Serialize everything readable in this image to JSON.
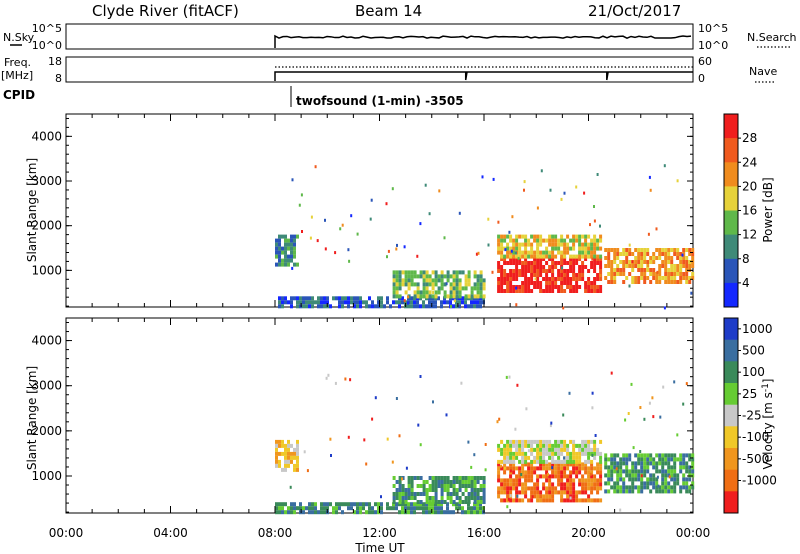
{
  "header": {
    "station": "Clyde River (fitACF)",
    "beam": "Beam 14",
    "date": "21/Oct/2017"
  },
  "panels": {
    "nsky": {
      "left_label": "N.Sky",
      "right_label": "N.Search",
      "tick_top_left": "10^5",
      "tick_bottom_left": "10^0",
      "tick_top_right": "10^5",
      "tick_bottom_right": "10^0"
    },
    "freq": {
      "left_label_1": "Freq.",
      "left_label_2": "[MHz]",
      "right_label": "Nave",
      "tick_top_left": "18",
      "tick_bottom_left": "8",
      "tick_top_right": "60",
      "tick_bottom_right": "0"
    },
    "cpid": {
      "label": "CPID",
      "program": "twofsound (1-min) -3505"
    }
  },
  "chart_data": [
    {
      "type": "heatmap",
      "name": "Power",
      "ylabel": "Slant Range [km]",
      "xlabel": "",
      "x_unit": "hours UT",
      "xlim": [
        0,
        24
      ],
      "ylim": [
        180,
        4500
      ],
      "yticks": [
        1000,
        2000,
        3000,
        4000
      ],
      "colorbar": {
        "label": "Power [dB]",
        "ticks": [
          "4",
          "8",
          "12",
          "16",
          "20",
          "24",
          "28"
        ],
        "colors": [
          "#1428ff",
          "#2a55b8",
          "#3f8a78",
          "#5fb84a",
          "#e6d23a",
          "#f08c1e",
          "#f05a1e",
          "#f01e1e"
        ]
      },
      "regions": [
        {
          "t0": 8.0,
          "t1": 8.9,
          "r0": 1150,
          "r1": 1800,
          "level": 2
        },
        {
          "t0": 8.0,
          "t1": 16.0,
          "r0": 180,
          "r1": 420,
          "level": 1
        },
        {
          "t0": 12.5,
          "t1": 16.0,
          "r0": 420,
          "r1": 1000,
          "level": 3
        },
        {
          "t0": 16.5,
          "t1": 20.5,
          "r0": 500,
          "r1": 1300,
          "level": 7
        },
        {
          "t0": 16.5,
          "t1": 20.5,
          "r0": 1300,
          "r1": 1800,
          "level": 4
        },
        {
          "t0": 20.6,
          "t1": 24.0,
          "r0": 700,
          "r1": 1500,
          "level": 5
        }
      ]
    },
    {
      "type": "heatmap",
      "name": "Velocity",
      "ylabel": "Slant Range [km]",
      "xlabel": "Time UT",
      "x_unit": "hours UT",
      "xlim": [
        0,
        24
      ],
      "ylim": [
        180,
        4500
      ],
      "yticks": [
        1000,
        2000,
        3000,
        4000
      ],
      "xticks": [
        "00:00",
        "04:00",
        "08:00",
        "12:00",
        "16:00",
        "20:00",
        "00:00"
      ],
      "colorbar": {
        "label": "Velocity [m s^-1]",
        "ticks": [
          "1000",
          "500",
          "100",
          "25",
          "-25",
          "-100",
          "-500",
          "-1000"
        ],
        "colors": [
          "#1e3cc8",
          "#3a6ea0",
          "#3a8a5a",
          "#66cc33",
          "#c8c8c8",
          "#f0c828",
          "#f0961e",
          "#f06e14",
          "#f01e1e"
        ]
      },
      "regions": [
        {
          "t0": 8.0,
          "t1": 8.9,
          "r0": 1150,
          "r1": 1800,
          "level": 5
        },
        {
          "t0": 8.0,
          "t1": 16.0,
          "r0": 180,
          "r1": 420,
          "level": 2
        },
        {
          "t0": 12.5,
          "t1": 16.0,
          "r0": 420,
          "r1": 1000,
          "level": 2
        },
        {
          "t0": 16.5,
          "t1": 20.5,
          "r0": 500,
          "r1": 1300,
          "level": 7
        },
        {
          "t0": 16.5,
          "t1": 20.5,
          "r0": 1300,
          "r1": 1800,
          "level": 4
        },
        {
          "t0": 20.6,
          "t1": 24.0,
          "r0": 700,
          "r1": 1500,
          "level": 2
        }
      ]
    }
  ],
  "colors": {
    "axis": "#000000",
    "background": "#ffffff"
  }
}
